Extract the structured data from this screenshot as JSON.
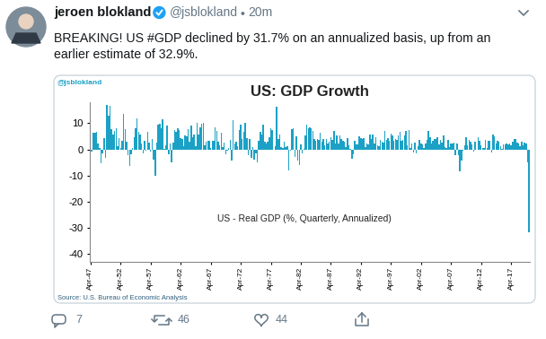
{
  "header": {
    "name": "jeroen blokland",
    "handle": "@jsblokland",
    "time": "20m"
  },
  "tweet": {
    "text": "BREAKING! US #GDP declined by 31.7% on an annualized basis, up from an\nearlier estimate of 32.9%."
  },
  "actions": {
    "replies": 7,
    "retweets": 46,
    "likes": 44
  },
  "chart_data": {
    "type": "bar",
    "title": "US: GDP Growth",
    "annotations": [
      "@jsblokland",
      "US - Real GDP (%, Quarterly, Annualized)",
      "Source: U.S. Bureau of Economic Analysis"
    ],
    "categories": [
      "Apr-47",
      null,
      null,
      null,
      null,
      null,
      null,
      null,
      null,
      null,
      null,
      null,
      null,
      null,
      null,
      null,
      null,
      null,
      null,
      null,
      "Apr-52",
      null,
      null,
      null,
      null,
      null,
      null,
      null,
      null,
      null,
      null,
      null,
      null,
      null,
      null,
      null,
      null,
      null,
      null,
      null,
      "Apr-57",
      null,
      null,
      null,
      null,
      null,
      null,
      null,
      null,
      null,
      null,
      null,
      null,
      null,
      null,
      null,
      null,
      null,
      null,
      null,
      "Apr-62",
      null,
      null,
      null,
      null,
      null,
      null,
      null,
      null,
      null,
      null,
      null,
      null,
      null,
      null,
      null,
      null,
      null,
      null,
      null,
      "Apr-67",
      null,
      null,
      null,
      null,
      null,
      null,
      null,
      null,
      null,
      null,
      null,
      null,
      null,
      null,
      null,
      null,
      null,
      null,
      null,
      "Apr-72",
      null,
      null,
      null,
      null,
      null,
      null,
      null,
      null,
      null,
      null,
      null,
      null,
      null,
      null,
      null,
      null,
      null,
      null,
      null,
      "Apr-77",
      null,
      null,
      null,
      null,
      null,
      null,
      null,
      null,
      null,
      null,
      null,
      null,
      null,
      null,
      null,
      null,
      null,
      null,
      null,
      "Apr-82",
      null,
      null,
      null,
      null,
      null,
      null,
      null,
      null,
      null,
      null,
      null,
      null,
      null,
      null,
      null,
      null,
      null,
      null,
      null,
      "Apr-87",
      null,
      null,
      null,
      null,
      null,
      null,
      null,
      null,
      null,
      null,
      null,
      null,
      null,
      null,
      null,
      null,
      null,
      null,
      null,
      "Apr-92",
      null,
      null,
      null,
      null,
      null,
      null,
      null,
      null,
      null,
      null,
      null,
      null,
      null,
      null,
      null,
      null,
      null,
      null,
      null,
      "Apr-97",
      null,
      null,
      null,
      null,
      null,
      null,
      null,
      null,
      null,
      null,
      null,
      null,
      null,
      null,
      null,
      null,
      null,
      null,
      null,
      "Apr-02",
      null,
      null,
      null,
      null,
      null,
      null,
      null,
      null,
      null,
      null,
      null,
      null,
      null,
      null,
      null,
      null,
      null,
      null,
      null,
      "Apr-07",
      null,
      null,
      null,
      null,
      null,
      null,
      null,
      null,
      null,
      null,
      null,
      null,
      null,
      null,
      null,
      null,
      null,
      null,
      null,
      "Apr-12",
      null,
      null,
      null,
      null,
      null,
      null,
      null,
      null,
      null,
      null,
      null,
      null,
      null,
      null,
      null,
      null,
      null,
      null,
      null,
      "Apr-17",
      null,
      null,
      null,
      null,
      null,
      null,
      null,
      null,
      null,
      null,
      null,
      null
    ],
    "values": [
      -1.0,
      -0.8,
      6.4,
      6.2,
      6.8,
      2.3,
      0.4,
      -5.4,
      -1.4,
      4.3,
      -3.4,
      16.9,
      12.7,
      16.6,
      7.7,
      5.5,
      7.2,
      8.2,
      1.1,
      4.3,
      0.6,
      3.1,
      13.5,
      7.6,
      3.0,
      -2.3,
      -6.2,
      -1.9,
      0.4,
      4.6,
      8.2,
      11.9,
      6.7,
      5.5,
      2.4,
      -1.5,
      3.3,
      -0.4,
      6.8,
      2.6,
      -1.0,
      3.9,
      -4.1,
      -10.0,
      2.6,
      9.6,
      9.7,
      7.9,
      11.4,
      0.3,
      1.5,
      9.2,
      -2.0,
      2.1,
      -4.9,
      2.7,
      7.4,
      6.7,
      8.1,
      7.4,
      4.3,
      4.0,
      1.2,
      5.4,
      5.1,
      7.8,
      3.0,
      9.2,
      4.8,
      5.6,
      1.1,
      10.0,
      5.6,
      8.4,
      9.7,
      10.1,
      1.5,
      2.9,
      3.4,
      3.4,
      0.4,
      3.3,
      3.1,
      8.3,
      6.9,
      2.8,
      1.7,
      6.2,
      0.9,
      2.5,
      -1.9,
      -0.6,
      0.6,
      3.7,
      -4.2,
      11.1,
      2.3,
      3.0,
      1.1,
      7.3,
      9.5,
      3.8,
      6.8,
      10.2,
      4.4,
      -2.1,
      3.9,
      -3.4,
      1.0,
      -3.8,
      -1.6,
      -4.8,
      3.1,
      6.8,
      5.5,
      9.3,
      3.0,
      2.2,
      2.9,
      4.8,
      8.0,
      7.4,
      0.0,
      1.3,
      16.4,
      4.1,
      5.5,
      0.7,
      0.4,
      3.0,
      1.0,
      1.3,
      -8.0,
      -0.5,
      7.6,
      8.1,
      -2.9,
      4.9,
      -4.3,
      -6.1,
      1.8,
      -1.5,
      0.2,
      5.4,
      9.4,
      8.1,
      8.5,
      8.2,
      7.2,
      4.0,
      3.2,
      3.9,
      3.6,
      6.3,
      3.0,
      3.9,
      1.6,
      3.9,
      2.1,
      2.8,
      4.6,
      3.6,
      6.9,
      2.1,
      5.4,
      2.4,
      5.4,
      4.1,
      3.1,
      3.0,
      0.8,
      4.4,
      1.5,
      0.3,
      -3.6,
      -1.9,
      3.2,
      2.0,
      1.9,
      4.9,
      4.4,
      4.0,
      4.2,
      0.7,
      2.4,
      1.9,
      5.5,
      4.0,
      5.5,
      2.4,
      4.6,
      1.4,
      1.2,
      3.5,
      3.0,
      2.6,
      7.2,
      3.7,
      4.3,
      3.1,
      6.1,
      5.2,
      3.1,
      3.9,
      3.6,
      5.3,
      6.7,
      3.4,
      3.5,
      5.4,
      7.1,
      1.5,
      7.5,
      0.4,
      2.4,
      -1.3,
      2.5,
      -1.6,
      1.1,
      3.5,
      2.4,
      1.8,
      0.6,
      2.2,
      3.5,
      7.0,
      4.7,
      2.2,
      3.1,
      3.8,
      4.1,
      4.5,
      1.9,
      3.6,
      2.6,
      5.4,
      0.9,
      0.6,
      3.5,
      0.9,
      2.3,
      2.2,
      2.5,
      -2.3,
      2.1,
      -2.1,
      -8.4,
      -4.4,
      -0.6,
      1.5,
      4.5,
      1.5,
      3.7,
      3.0,
      2.0,
      -1.0,
      2.9,
      -0.1,
      4.7,
      3.2,
      1.7,
      0.5,
      0.5,
      3.6,
      0.5,
      3.2,
      3.2,
      -1.1,
      5.5,
      5.0,
      2.3,
      3.2,
      3.0,
      1.3,
      0.1,
      2.0,
      1.9,
      2.2,
      2.0,
      2.3,
      1.7,
      2.9,
      3.9,
      3.8,
      2.7,
      2.1,
      1.3,
      2.9,
      1.5,
      2.6,
      2.4,
      -5.0,
      -31.7
    ],
    "color": "#1ba1c5",
    "ylim": [
      -43,
      18
    ],
    "yticks": [
      -40,
      -30,
      -20,
      -10,
      0,
      10
    ],
    "grid": false
  }
}
